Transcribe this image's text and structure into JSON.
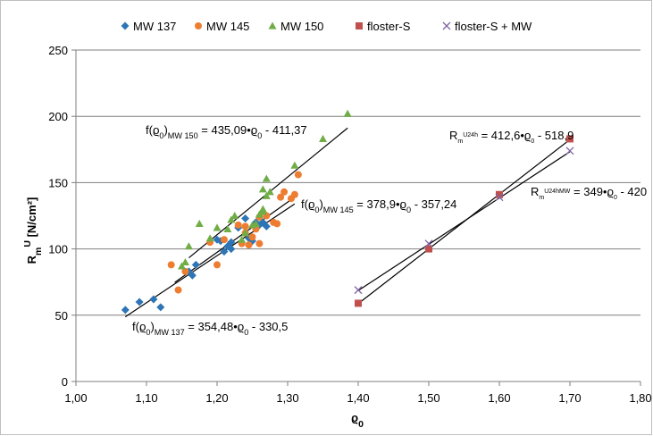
{
  "chart_data": {
    "type": "scatter",
    "xlabel": [
      {
        "text": "ϱ"
      },
      {
        "text": "0",
        "shift": "sub"
      }
    ],
    "ylabel": [
      {
        "text": "R"
      },
      {
        "text": "m",
        "shift": "sub"
      },
      {
        "text": "U",
        "shift": "super"
      },
      {
        "text": "  [N/cm²]"
      }
    ],
    "xlim": [
      1.0,
      1.8
    ],
    "xticks": [
      {
        "value": 1.0,
        "label": "1,00"
      },
      {
        "value": 1.1,
        "label": "1,10"
      },
      {
        "value": 1.2,
        "label": "1,20"
      },
      {
        "value": 1.3,
        "label": "1,30"
      },
      {
        "value": 1.4,
        "label": "1,40"
      },
      {
        "value": 1.5,
        "label": "1,50"
      },
      {
        "value": 1.6,
        "label": "1,60"
      },
      {
        "value": 1.7,
        "label": "1,70"
      },
      {
        "value": 1.8,
        "label": "1,80"
      }
    ],
    "ylim": [
      0,
      250
    ],
    "yticks": [
      0,
      50,
      100,
      150,
      200,
      250
    ],
    "grid": true,
    "legend": "top",
    "series": [
      {
        "name": "MW 137",
        "color": "#2e75b6",
        "marker": "diamond",
        "x": [
          1.07,
          1.09,
          1.11,
          1.12,
          1.16,
          1.165,
          1.17,
          1.2,
          1.205,
          1.21,
          1.215,
          1.22,
          1.22,
          1.23,
          1.24,
          1.245,
          1.25,
          1.255,
          1.26,
          1.265,
          1.27
        ],
        "values": [
          54,
          60,
          62,
          56,
          83,
          80,
          88,
          107,
          106,
          98,
          102,
          100,
          105,
          116,
          123,
          108,
          106,
          120,
          118,
          120,
          117
        ]
      },
      {
        "name": "MW 145",
        "color": "#ed7d31",
        "marker": "circle",
        "x": [
          1.135,
          1.145,
          1.155,
          1.19,
          1.2,
          1.21,
          1.23,
          1.235,
          1.24,
          1.24,
          1.245,
          1.25,
          1.255,
          1.26,
          1.26,
          1.27,
          1.28,
          1.285,
          1.29,
          1.295,
          1.305,
          1.31,
          1.315
        ],
        "values": [
          88,
          69,
          83,
          105,
          88,
          107,
          118,
          104,
          112,
          117,
          103,
          109,
          115,
          104,
          124,
          125,
          120,
          119,
          139,
          143,
          138,
          141,
          156
        ]
      },
      {
        "name": "MW 150",
        "color": "#70ad47",
        "marker": "triangle",
        "x": [
          1.15,
          1.155,
          1.16,
          1.175,
          1.19,
          1.2,
          1.215,
          1.22,
          1.225,
          1.235,
          1.24,
          1.25,
          1.255,
          1.26,
          1.265,
          1.265,
          1.265,
          1.27,
          1.27,
          1.275,
          1.31,
          1.35,
          1.385
        ],
        "values": [
          87,
          90,
          102,
          119,
          108,
          116,
          115,
          122,
          125,
          107,
          112,
          118,
          119,
          126,
          128,
          130,
          145,
          153,
          140,
          143,
          163,
          183,
          202
        ]
      },
      {
        "name": "floster-S",
        "color": "#c0504d",
        "marker": "square",
        "x": [
          1.4,
          1.5,
          1.6,
          1.7
        ],
        "values": [
          59,
          100,
          141,
          183
        ]
      },
      {
        "name": "floster-S + MW",
        "color": "#8064a2",
        "marker": "cross",
        "x": [
          1.4,
          1.5,
          1.6,
          1.7
        ],
        "values": [
          69,
          104,
          139,
          174
        ]
      }
    ],
    "trendlines": [
      {
        "color": "#000000",
        "x": [
          1.16,
          1.385
        ],
        "values": [
          93.3,
          191.2
        ]
      },
      {
        "color": "#000000",
        "x": [
          1.14,
          1.31
        ],
        "values": [
          74.7,
          139.1
        ]
      },
      {
        "color": "#000000",
        "x": [
          1.07,
          1.31
        ],
        "values": [
          48.8,
          133.9
        ]
      },
      {
        "color": "#000000",
        "x": [
          1.4,
          1.7
        ],
        "values": [
          58.7,
          182.5
        ]
      },
      {
        "color": "#000000",
        "x": [
          1.4,
          1.7
        ],
        "values": [
          68.6,
          173.3
        ]
      }
    ],
    "annotations": [
      {
        "parts": [
          {
            "text": "f(ϱ"
          },
          {
            "text": "0",
            "shift": "sub"
          },
          {
            "text": ")"
          },
          {
            "text": "MW 150",
            "shift": "sub"
          },
          {
            "text": " = 435,09•ϱ"
          },
          {
            "text": "0",
            "shift": "sub"
          },
          {
            "text": " - 411,37"
          }
        ]
      },
      {
        "parts": [
          {
            "text": "f(ϱ"
          },
          {
            "text": "0",
            "shift": "sub"
          },
          {
            "text": ")"
          },
          {
            "text": "MW 145",
            "shift": "sub"
          },
          {
            "text": " = 378,9•ϱ"
          },
          {
            "text": "0",
            "shift": "sub"
          },
          {
            "text": " - 357,24"
          }
        ]
      },
      {
        "parts": [
          {
            "text": "f(ϱ"
          },
          {
            "text": "0",
            "shift": "sub"
          },
          {
            "text": ")"
          },
          {
            "text": "MW 137",
            "shift": "sub"
          },
          {
            "text": " = 354,48•ϱ"
          },
          {
            "text": "0",
            "shift": "sub"
          },
          {
            "text": " - 330,5"
          }
        ]
      },
      {
        "parts": [
          {
            "text": "R"
          },
          {
            "text": "m",
            "shift": "sub"
          },
          {
            "text": "U24h",
            "shift": "super"
          },
          {
            "text": " = 412,6•ϱ"
          },
          {
            "text": "0",
            "shift": "sub"
          },
          {
            "text": " - 518,9"
          }
        ]
      },
      {
        "parts": [
          {
            "text": "R"
          },
          {
            "text": "m",
            "shift": "sub"
          },
          {
            "text": "U24hMW",
            "shift": "super"
          },
          {
            "text": " = 349•ϱ"
          },
          {
            "text": "0",
            "shift": "sub"
          },
          {
            "text": " - 420"
          }
        ]
      }
    ]
  }
}
